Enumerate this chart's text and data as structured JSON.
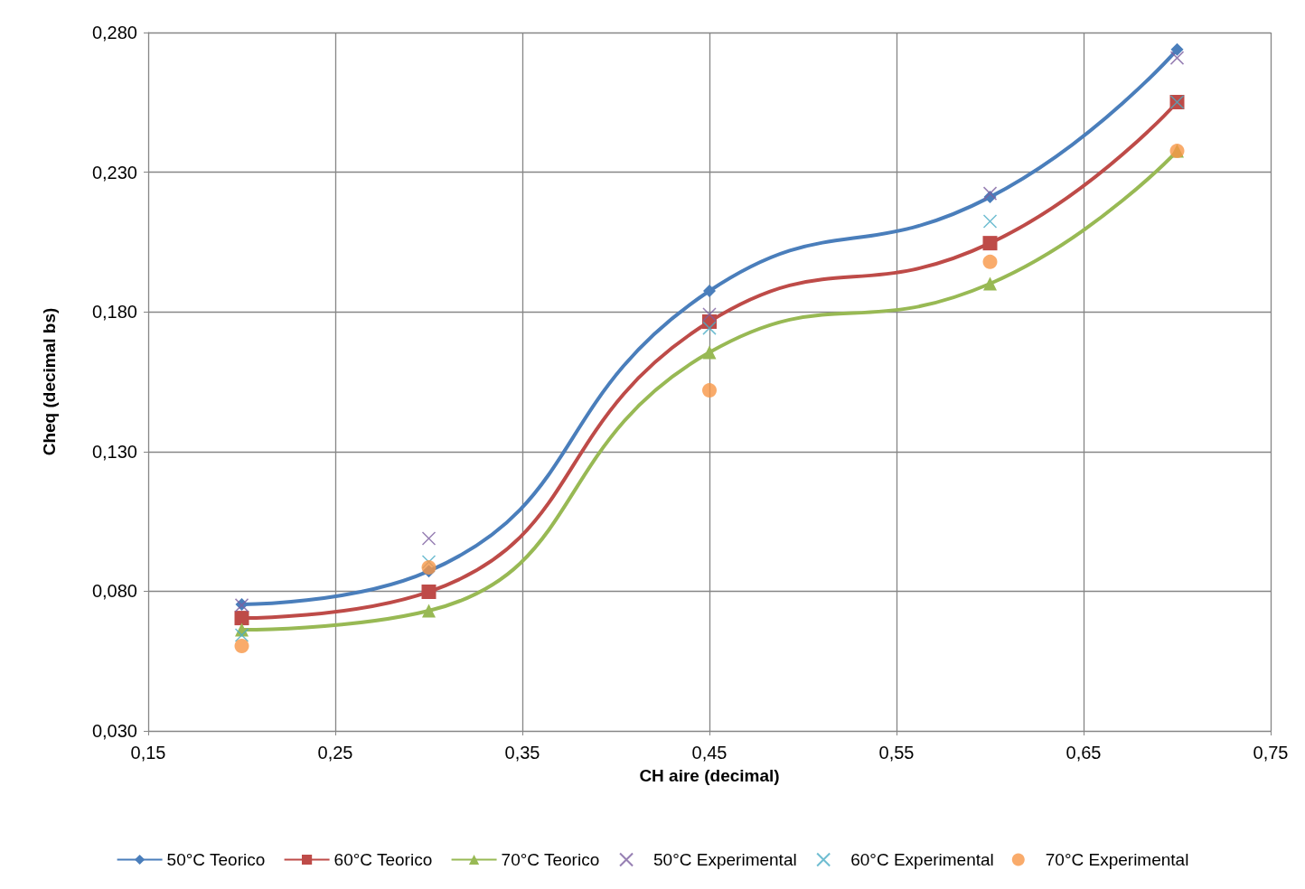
{
  "chart_data": {
    "type": "line",
    "xlabel": "CH aire (decimal)",
    "ylabel": "Cheq (decimal bs)",
    "x": [
      0.2,
      0.3,
      0.45,
      0.6,
      0.7
    ],
    "series": [
      {
        "name": "50°C Teorico",
        "color": "#4a7ebb",
        "marker": "diamond",
        "values": [
          0.0753,
          0.0872,
          0.1875,
          0.2211,
          0.2739
        ]
      },
      {
        "name": "60°C Teorico",
        "color": "#be4b48",
        "marker": "square",
        "values": [
          0.0704,
          0.0798,
          0.1765,
          0.2046,
          0.2551
        ]
      },
      {
        "name": "70°C Teorico",
        "color": "#98b954",
        "marker": "triangle",
        "values": [
          0.0662,
          0.073,
          0.1655,
          0.1901,
          0.2376
        ]
      },
      {
        "name": "50°C Experimental",
        "type": "scatter",
        "color": "#7d60a0",
        "marker": "cross",
        "values": [
          0.075,
          0.0989,
          0.1791,
          0.2224,
          0.2709
        ]
      },
      {
        "name": "60°C Experimental",
        "type": "scatter",
        "color": "#4bacc6",
        "marker": "cross",
        "values": [
          0.0643,
          0.0905,
          0.1742,
          0.2124,
          0.2551
        ]
      },
      {
        "name": "70°C Experimental",
        "type": "scatter",
        "color": "#f79646",
        "marker": "circle",
        "values": [
          0.0604,
          0.0885,
          0.1519,
          0.1979,
          0.2376
        ]
      }
    ],
    "xlim": [
      0.15,
      0.75
    ],
    "xticks": [
      {
        "value": 0.15,
        "label": "0,15"
      },
      {
        "value": 0.25,
        "label": "0,25"
      },
      {
        "value": 0.35,
        "label": "0,35"
      },
      {
        "value": 0.45,
        "label": "0,45"
      },
      {
        "value": 0.55,
        "label": "0,55"
      },
      {
        "value": 0.65,
        "label": "0,65"
      },
      {
        "value": 0.75,
        "label": "0,75"
      }
    ],
    "ylim": [
      0.03,
      0.28
    ],
    "yticks": [
      {
        "value": 0.03,
        "label": "0,030"
      },
      {
        "value": 0.08,
        "label": "0,080"
      },
      {
        "value": 0.13,
        "label": "0,130"
      },
      {
        "value": 0.18,
        "label": "0,180"
      },
      {
        "value": 0.23,
        "label": "0,230"
      },
      {
        "value": 0.28,
        "label": "0,280"
      }
    ],
    "grid": true,
    "legend": "bottom",
    "line_style": "solid"
  }
}
